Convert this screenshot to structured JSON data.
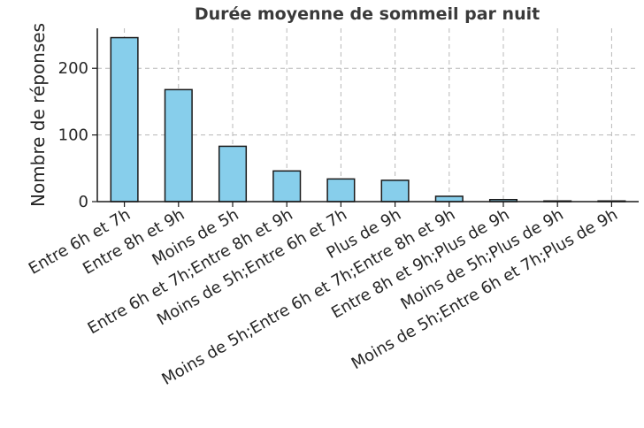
{
  "chart_data": {
    "type": "bar",
    "title": "Durée moyenne de sommeil par nuit",
    "xlabel": "",
    "ylabel": "Nombre de réponses",
    "categories": [
      "Entre 6h et 7h",
      "Entre 8h et 9h",
      "Moins de 5h",
      "Entre 6h et 7h;Entre 8h et 9h",
      "Moins de 5h;Entre 6h et 7h",
      "Plus de 9h",
      "Moins de 5h;Entre 6h et 7h;Entre 8h et 9h",
      "Entre 8h et 9h;Plus de 9h",
      "Moins de 5h;Plus de 9h",
      "Moins de 5h;Entre 6h et 7h;Plus de 9h"
    ],
    "values": [
      246,
      168,
      83,
      46,
      34,
      32,
      8,
      3,
      1,
      1
    ],
    "ylim": [
      0,
      260
    ],
    "yticks": [
      0,
      100,
      200
    ],
    "grid": true,
    "bar_color": "#87ceeb",
    "edge_color": "#1a1a1a"
  }
}
